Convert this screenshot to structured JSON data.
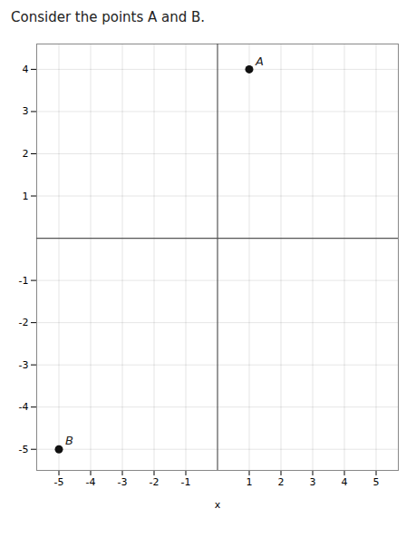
{
  "chart_data": {
    "type": "scatter",
    "title": "Consider the points A and B.",
    "xlabel": "x",
    "x": [
      1,
      -5
    ],
    "values": [
      4,
      -5
    ],
    "labels": [
      "A",
      "B"
    ],
    "color": "#111111",
    "xlim": [
      -5.7,
      5.7
    ],
    "ylim": [
      -5.5,
      4.6
    ],
    "xticks": [
      -5,
      -4,
      -3,
      -2,
      -1,
      1,
      2,
      3,
      4,
      5
    ],
    "yticks": [
      -5,
      -4,
      -3,
      -2,
      -1,
      1,
      2,
      3,
      4
    ],
    "grid": true
  }
}
